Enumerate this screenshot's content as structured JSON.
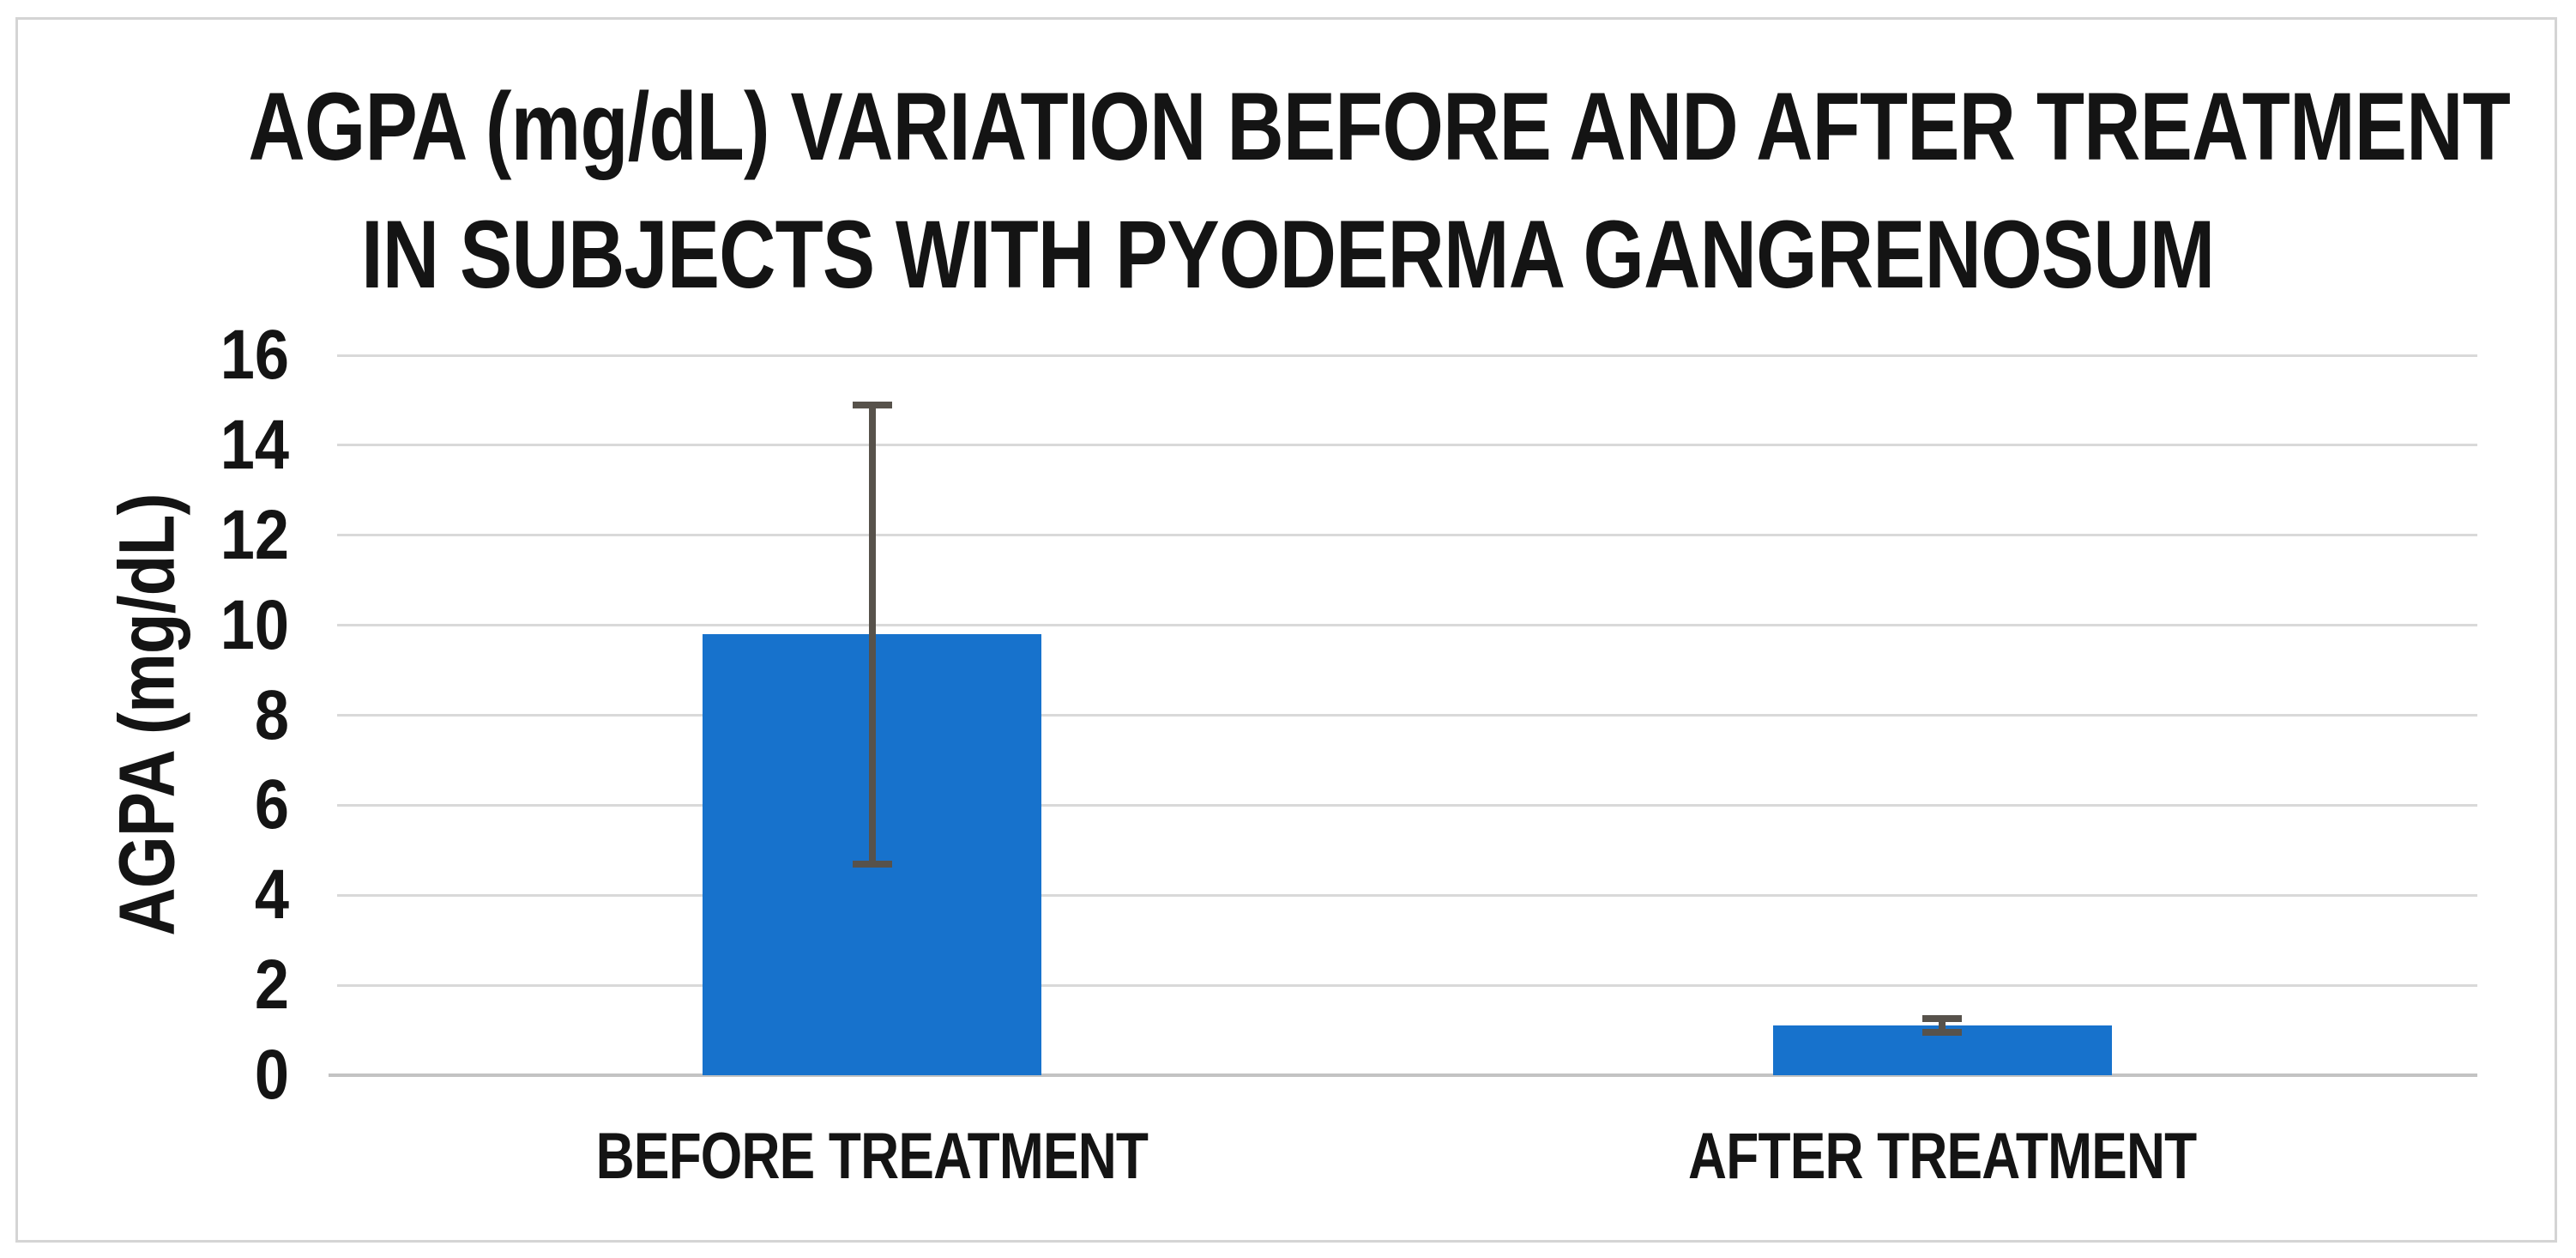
{
  "chart_data": {
    "type": "bar",
    "title": "AGPA (mg/dL) VARIATION BEFORE AND AFTER TREATMENT IN SUBJECTS WITH PYODERMA GANGRENOSUM",
    "title_lines": [
      "AGPA (mg/dL) VARIATION BEFORE AND AFTER TREATMENT",
      "IN SUBJECTS WITH PYODERMA GANGRENOSUM"
    ],
    "xlabel": "",
    "ylabel": "AGPA (mg/dL)",
    "categories": [
      "BEFORE TREATMENT",
      "AFTER TREATMENT"
    ],
    "values": [
      9.8,
      1.1
    ],
    "error_bars": {
      "plus": [
        5.1,
        0.15
      ],
      "minus": [
        5.1,
        0.15
      ]
    },
    "error_bar_range_before": [
      4.7,
      14.9
    ],
    "error_bar_range_after": [
      0.95,
      1.25
    ],
    "ylim": [
      0,
      16
    ],
    "yticks": [
      0,
      2,
      4,
      6,
      8,
      10,
      12,
      14,
      16
    ],
    "ytick_step": 2,
    "grid": "horizontal",
    "legend": "none",
    "colors": {
      "bar_fill": "#1772CC",
      "error_bar": "#57524B",
      "gridline": "#D9D9D9",
      "axis_line": "#C3C3C3",
      "text": "#141414",
      "frame_border": "#D4D4D4",
      "background": "#FFFFFF"
    }
  }
}
